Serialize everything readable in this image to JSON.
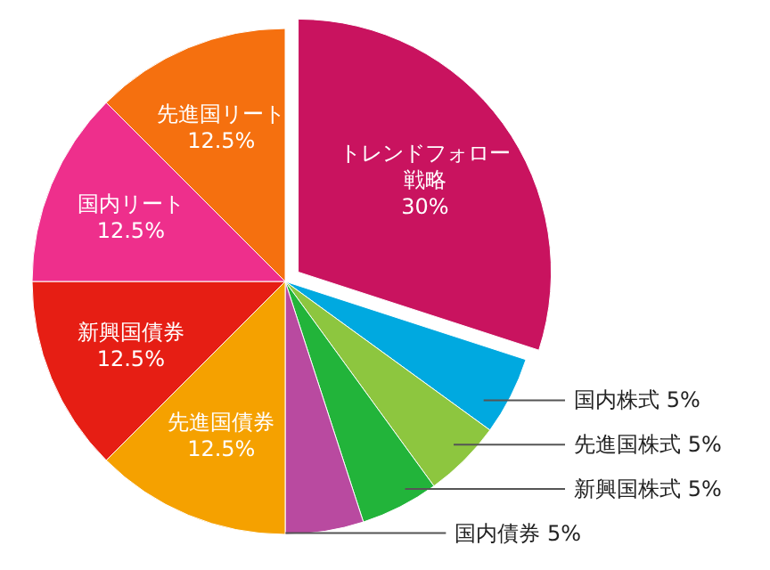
{
  "chart_data": {
    "type": "pie",
    "categories": [
      "トレンドフォロー戦略",
      "国内株式",
      "先進国株式",
      "新興国株式",
      "国内債券",
      "先進国債券",
      "新興国債券",
      "国内リート",
      "先進国リート"
    ],
    "values": [
      30,
      5,
      5,
      5,
      5,
      12.5,
      12.5,
      12.5,
      12.5
    ],
    "value_labels": [
      "30%",
      "5%",
      "5%",
      "5%",
      "5%",
      "12.5%",
      "12.5%",
      "12.5%",
      "12.5%"
    ],
    "colors": [
      "#c9135f",
      "#00a9e0",
      "#8dc63f",
      "#22b43a",
      "#b94aa0",
      "#f5a100",
      "#e61e14",
      "#ee2f8c",
      "#f5700f"
    ]
  }
}
